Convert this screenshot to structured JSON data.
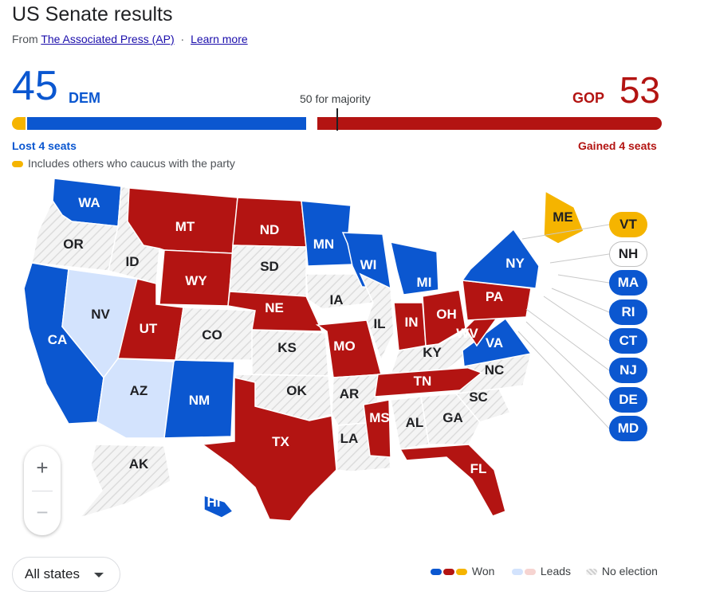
{
  "header": {
    "title": "US Senate results",
    "source_prefix": "From",
    "source_link": "The Associated Press (AP)",
    "separator": "·",
    "learn_more": "Learn more"
  },
  "summary": {
    "dem_count": "45",
    "dem_label": "DEM",
    "gop_count": "53",
    "gop_label": "GOP",
    "majority_label": "50 for majority",
    "dem_change": "Lost 4 seats",
    "gop_change": "Gained 4 seats",
    "caucus_note": "Includes others who caucus with the party"
  },
  "colors": {
    "dem": "#0b57d0",
    "gop": "#b31412",
    "ind": "#f5b400",
    "dem_leads": "#d3e3fd",
    "gop_leads": "#f6d4d1",
    "no_election": "#f1f3f4"
  },
  "map": {
    "states": [
      {
        "abbr": "WA",
        "status": "dem"
      },
      {
        "abbr": "OR",
        "status": "none"
      },
      {
        "abbr": "CA",
        "status": "dem"
      },
      {
        "abbr": "ID",
        "status": "none"
      },
      {
        "abbr": "NV",
        "status": "dem_leads"
      },
      {
        "abbr": "AZ",
        "status": "dem_leads"
      },
      {
        "abbr": "UT",
        "status": "gop"
      },
      {
        "abbr": "MT",
        "status": "gop"
      },
      {
        "abbr": "WY",
        "status": "gop"
      },
      {
        "abbr": "CO",
        "status": "none"
      },
      {
        "abbr": "NM",
        "status": "dem"
      },
      {
        "abbr": "ND",
        "status": "gop"
      },
      {
        "abbr": "SD",
        "status": "none"
      },
      {
        "abbr": "NE",
        "status": "gop"
      },
      {
        "abbr": "KS",
        "status": "none"
      },
      {
        "abbr": "OK",
        "status": "none"
      },
      {
        "abbr": "TX",
        "status": "gop"
      },
      {
        "abbr": "MN",
        "status": "dem"
      },
      {
        "abbr": "IA",
        "status": "none"
      },
      {
        "abbr": "MO",
        "status": "gop"
      },
      {
        "abbr": "AR",
        "status": "none"
      },
      {
        "abbr": "LA",
        "status": "none"
      },
      {
        "abbr": "WI",
        "status": "dem"
      },
      {
        "abbr": "IL",
        "status": "none"
      },
      {
        "abbr": "MI",
        "status": "dem"
      },
      {
        "abbr": "IN",
        "status": "gop"
      },
      {
        "abbr": "OH",
        "status": "gop"
      },
      {
        "abbr": "KY",
        "status": "none"
      },
      {
        "abbr": "TN",
        "status": "gop"
      },
      {
        "abbr": "MS",
        "status": "gop"
      },
      {
        "abbr": "AL",
        "status": "none"
      },
      {
        "abbr": "GA",
        "status": "none"
      },
      {
        "abbr": "FL",
        "status": "gop"
      },
      {
        "abbr": "SC",
        "status": "none"
      },
      {
        "abbr": "NC",
        "status": "none"
      },
      {
        "abbr": "VA",
        "status": "dem"
      },
      {
        "abbr": "WV",
        "status": "gop"
      },
      {
        "abbr": "PA",
        "status": "gop"
      },
      {
        "abbr": "NY",
        "status": "dem"
      },
      {
        "abbr": "ME",
        "status": "ind"
      },
      {
        "abbr": "AK",
        "status": "none"
      },
      {
        "abbr": "HI",
        "status": "dem"
      }
    ],
    "small_states": [
      {
        "abbr": "VT",
        "status": "ind"
      },
      {
        "abbr": "NH",
        "status": "none"
      },
      {
        "abbr": "MA",
        "status": "dem"
      },
      {
        "abbr": "RI",
        "status": "dem"
      },
      {
        "abbr": "CT",
        "status": "dem"
      },
      {
        "abbr": "NJ",
        "status": "dem"
      },
      {
        "abbr": "DE",
        "status": "dem"
      },
      {
        "abbr": "MD",
        "status": "dem"
      }
    ]
  },
  "controls": {
    "zoom_in": "+",
    "zoom_out": "−",
    "state_select": "All states"
  },
  "legend": {
    "won": "Won",
    "leads": "Leads",
    "no_election": "No election"
  }
}
